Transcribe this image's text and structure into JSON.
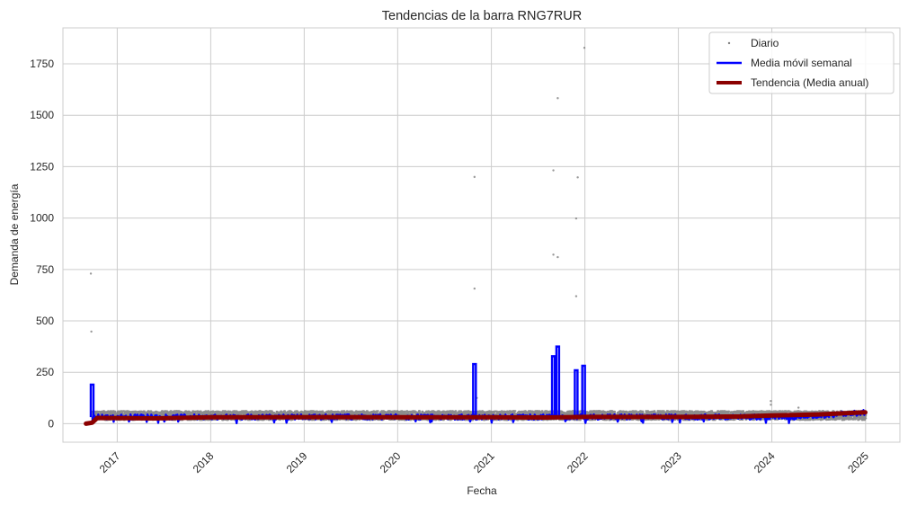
{
  "chart_data": {
    "type": "line",
    "title": "Tendencias de la barra RNG7RUR",
    "xlabel": "Fecha",
    "ylabel": "Demanda de energía",
    "xlim": [
      "2016-06-03",
      "2025-05-15"
    ],
    "ylim": [
      -90,
      1925
    ],
    "x_ticks": [
      "2017",
      "2018",
      "2019",
      "2020",
      "2021",
      "2022",
      "2023",
      "2024",
      "2025"
    ],
    "y_ticks": [
      0,
      250,
      500,
      750,
      1000,
      1250,
      1500,
      1750
    ],
    "grid": true,
    "legend_position": "top-right",
    "series": [
      {
        "name": "Diario",
        "style": "scatter",
        "color": "#808080",
        "band": {
          "start": "2016-09-25",
          "end": "2024-12-31",
          "low": 18,
          "high": 62
        },
        "points": [
          {
            "x": "2016-09-20",
            "y": 730
          },
          {
            "x": "2016-09-22",
            "y": 448
          },
          {
            "x": "2020-10-27",
            "y": 1200
          },
          {
            "x": "2020-10-27",
            "y": 657
          },
          {
            "x": "2020-11-05",
            "y": 125
          },
          {
            "x": "2021-08-31",
            "y": 1232
          },
          {
            "x": "2021-08-31",
            "y": 822
          },
          {
            "x": "2021-09-17",
            "y": 1583
          },
          {
            "x": "2021-09-17",
            "y": 810
          },
          {
            "x": "2021-11-28",
            "y": 998
          },
          {
            "x": "2021-11-28",
            "y": 620
          },
          {
            "x": "2021-12-04",
            "y": 1198
          },
          {
            "x": "2021-12-30",
            "y": 1828
          },
          {
            "x": "2023-12-28",
            "y": 110
          },
          {
            "x": "2023-12-28",
            "y": 92
          },
          {
            "x": "2024-04-14",
            "y": 78
          }
        ]
      },
      {
        "name": "Media móvil semanal",
        "style": "line",
        "color": "#0000ff",
        "baseline": 32,
        "band_low": 20,
        "band_high": 45,
        "peaks": [
          {
            "x": "2016-09-25",
            "y": 190
          },
          {
            "x": "2020-10-27",
            "y": 290
          },
          {
            "x": "2021-08-31",
            "y": 328
          },
          {
            "x": "2021-09-17",
            "y": 375
          },
          {
            "x": "2021-11-28",
            "y": 260
          },
          {
            "x": "2021-12-27",
            "y": 282
          }
        ]
      },
      {
        "name": "Tendencia (Media anual)",
        "style": "line",
        "color": "#8b0000",
        "points": [
          {
            "x": "2016-09-01",
            "y": 0
          },
          {
            "x": "2016-09-25",
            "y": 5
          },
          {
            "x": "2016-10-15",
            "y": 28
          },
          {
            "x": "2017-06-01",
            "y": 26
          },
          {
            "x": "2018-01-01",
            "y": 31
          },
          {
            "x": "2019-01-01",
            "y": 32
          },
          {
            "x": "2020-01-01",
            "y": 31
          },
          {
            "x": "2021-01-01",
            "y": 31
          },
          {
            "x": "2021-08-01",
            "y": 30
          },
          {
            "x": "2022-01-01",
            "y": 33
          },
          {
            "x": "2023-01-01",
            "y": 33
          },
          {
            "x": "2023-09-01",
            "y": 35
          },
          {
            "x": "2024-01-01",
            "y": 40
          },
          {
            "x": "2024-07-01",
            "y": 45
          },
          {
            "x": "2024-12-31",
            "y": 55
          }
        ]
      }
    ]
  }
}
